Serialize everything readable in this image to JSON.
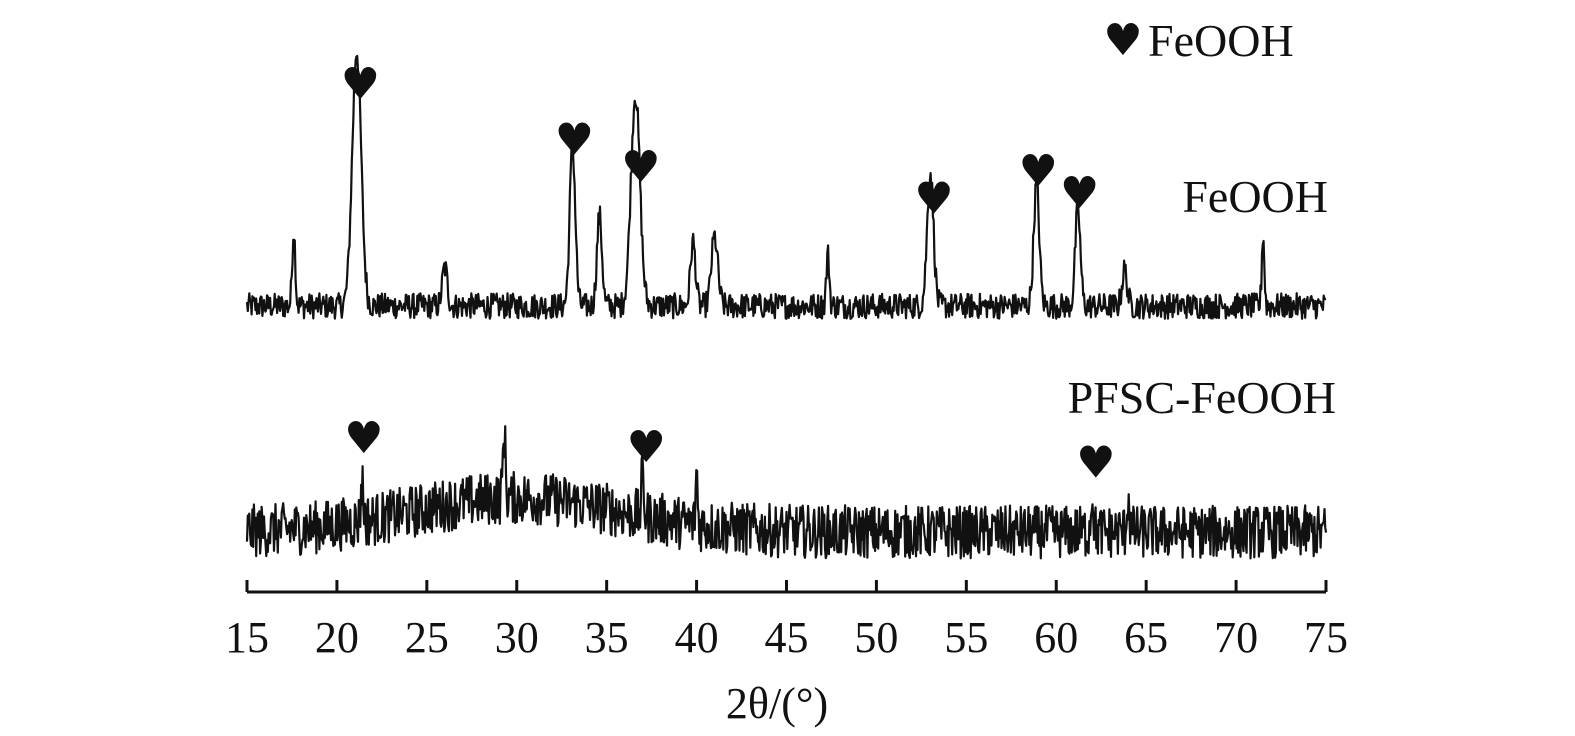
{
  "chart_data": {
    "type": "line",
    "xlabel": "2θ/(°)",
    "xlim": [
      15,
      75
    ],
    "x_ticks": [
      15,
      20,
      25,
      30,
      35,
      40,
      45,
      50,
      55,
      60,
      65,
      70,
      75
    ],
    "y_axis_shown": false,
    "grid": false,
    "legend": {
      "symbol": "♥",
      "label": "FeOOH",
      "position": "top-right"
    },
    "series": [
      {
        "name": "FeOOH",
        "baseline": 0,
        "noise": 0.1,
        "peaks": [
          {
            "x": 17.6,
            "y": 0.3,
            "w": 0.12
          },
          {
            "x": 21.1,
            "y": 1.0,
            "w": 0.35
          },
          {
            "x": 26.0,
            "y": 0.15,
            "w": 0.2
          },
          {
            "x": 33.1,
            "y": 0.62,
            "w": 0.22
          },
          {
            "x": 34.6,
            "y": 0.35,
            "w": 0.2
          },
          {
            "x": 36.6,
            "y": 0.83,
            "w": 0.35
          },
          {
            "x": 39.8,
            "y": 0.25,
            "w": 0.2
          },
          {
            "x": 41.0,
            "y": 0.27,
            "w": 0.25
          },
          {
            "x": 47.3,
            "y": 0.2,
            "w": 0.12
          },
          {
            "x": 53.0,
            "y": 0.52,
            "w": 0.25
          },
          {
            "x": 58.9,
            "y": 0.47,
            "w": 0.22
          },
          {
            "x": 61.2,
            "y": 0.38,
            "w": 0.2
          },
          {
            "x": 63.8,
            "y": 0.14,
            "w": 0.2
          },
          {
            "x": 71.5,
            "y": 0.28,
            "w": 0.1
          }
        ],
        "marker_x": [
          21.3,
          33.2,
          36.9,
          53.2,
          59.0,
          61.3
        ]
      },
      {
        "name": "PFSC-FeOOH",
        "baseline": 0,
        "noise": 0.28,
        "hump": {
          "x": 30,
          "y": 0.18,
          "w": 8
        },
        "peaks": [
          {
            "x": 21.4,
            "y": 0.2,
            "w": 0.1
          },
          {
            "x": 29.3,
            "y": 0.35,
            "w": 0.1
          },
          {
            "x": 37.0,
            "y": 0.22,
            "w": 0.1
          },
          {
            "x": 40.0,
            "y": 0.28,
            "w": 0.08
          },
          {
            "x": 62.0,
            "y": 0.2,
            "w": 0.1
          },
          {
            "x": 64.0,
            "y": 0.18,
            "w": 0.1
          }
        ],
        "marker_x": [
          21.5,
          37.2,
          62.2
        ]
      }
    ]
  }
}
